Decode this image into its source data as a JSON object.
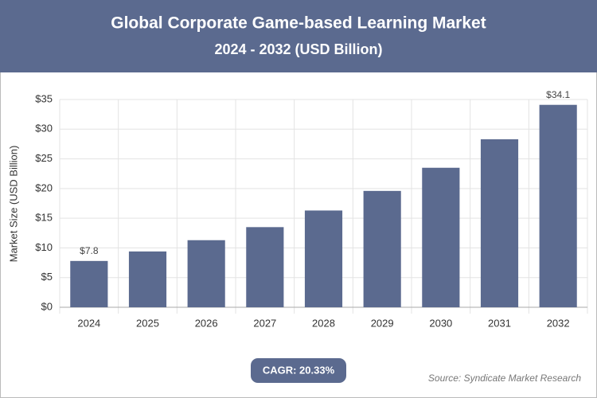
{
  "chart_data": {
    "type": "bar",
    "title": "Global Corporate Game-based Learning Market",
    "subtitle": "2024 - 2032 (USD Billion)",
    "y_label": "Market Size (USD Billion)",
    "categories": [
      "2024",
      "2025",
      "2026",
      "2027",
      "2028",
      "2029",
      "2030",
      "2031",
      "2032"
    ],
    "values": [
      7.8,
      9.4,
      11.3,
      13.5,
      16.3,
      19.6,
      23.5,
      28.3,
      34.1
    ],
    "value_labels": [
      "$7.8",
      null,
      null,
      null,
      null,
      null,
      null,
      null,
      "$34.1"
    ],
    "color": "#5b6a8f",
    "ylim": [
      0,
      35
    ],
    "yticks": [
      {
        "value": 0,
        "label": "$0"
      },
      {
        "value": 5,
        "label": "$5"
      },
      {
        "value": 10,
        "label": "$10"
      },
      {
        "value": 15,
        "label": "$15"
      },
      {
        "value": 20,
        "label": "$20"
      },
      {
        "value": 25,
        "label": "$25"
      },
      {
        "value": 30,
        "label": "$30"
      },
      {
        "value": 35,
        "label": "$35"
      }
    ],
    "grid": true,
    "cagr": "CAGR: 20.33%",
    "source": "Source: Syndicate Market Research"
  }
}
